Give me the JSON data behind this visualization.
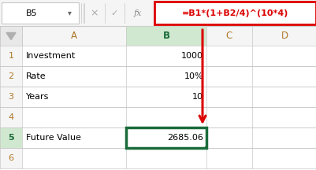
{
  "formula_bar_cell": "B5",
  "formula_bar_formula": "=B1*(1+B2/4)^(10*4)",
  "col_headers": [
    "A",
    "B",
    "C",
    "D"
  ],
  "bg_color": "#ffffff",
  "grid_color": "#c8c8c8",
  "header_text_color": "#b07828",
  "row_num_color": "#b07828",
  "selected_col_header_bg": "#d0e8d0",
  "selected_col_header_color": "#1a6b3a",
  "selected_row_num_bg": "#d0e8d0",
  "formula_box_border_color": "#dd0000",
  "formula_text_color": "#dd0000",
  "toolbar_bg": "#f5f5f5",
  "header_bg": "#f5f5f5",
  "arrow_color": "#dd0000",
  "cell_bg": "#ffffff",
  "corner_bg": "#e8e8e8",
  "name_box_bg": "#ffffff",
  "icon_bar_bg": "#f5f5f5",
  "rows": [
    {
      "num": "1",
      "a": "Investment",
      "b": "1000"
    },
    {
      "num": "2",
      "a": "Rate",
      "b": "10%"
    },
    {
      "num": "3",
      "a": "Years",
      "b": "10"
    },
    {
      "num": "4",
      "a": "",
      "b": ""
    },
    {
      "num": "5",
      "a": "Future Value",
      "b": "2685.06"
    },
    {
      "num": "6",
      "a": "",
      "b": ""
    }
  ]
}
